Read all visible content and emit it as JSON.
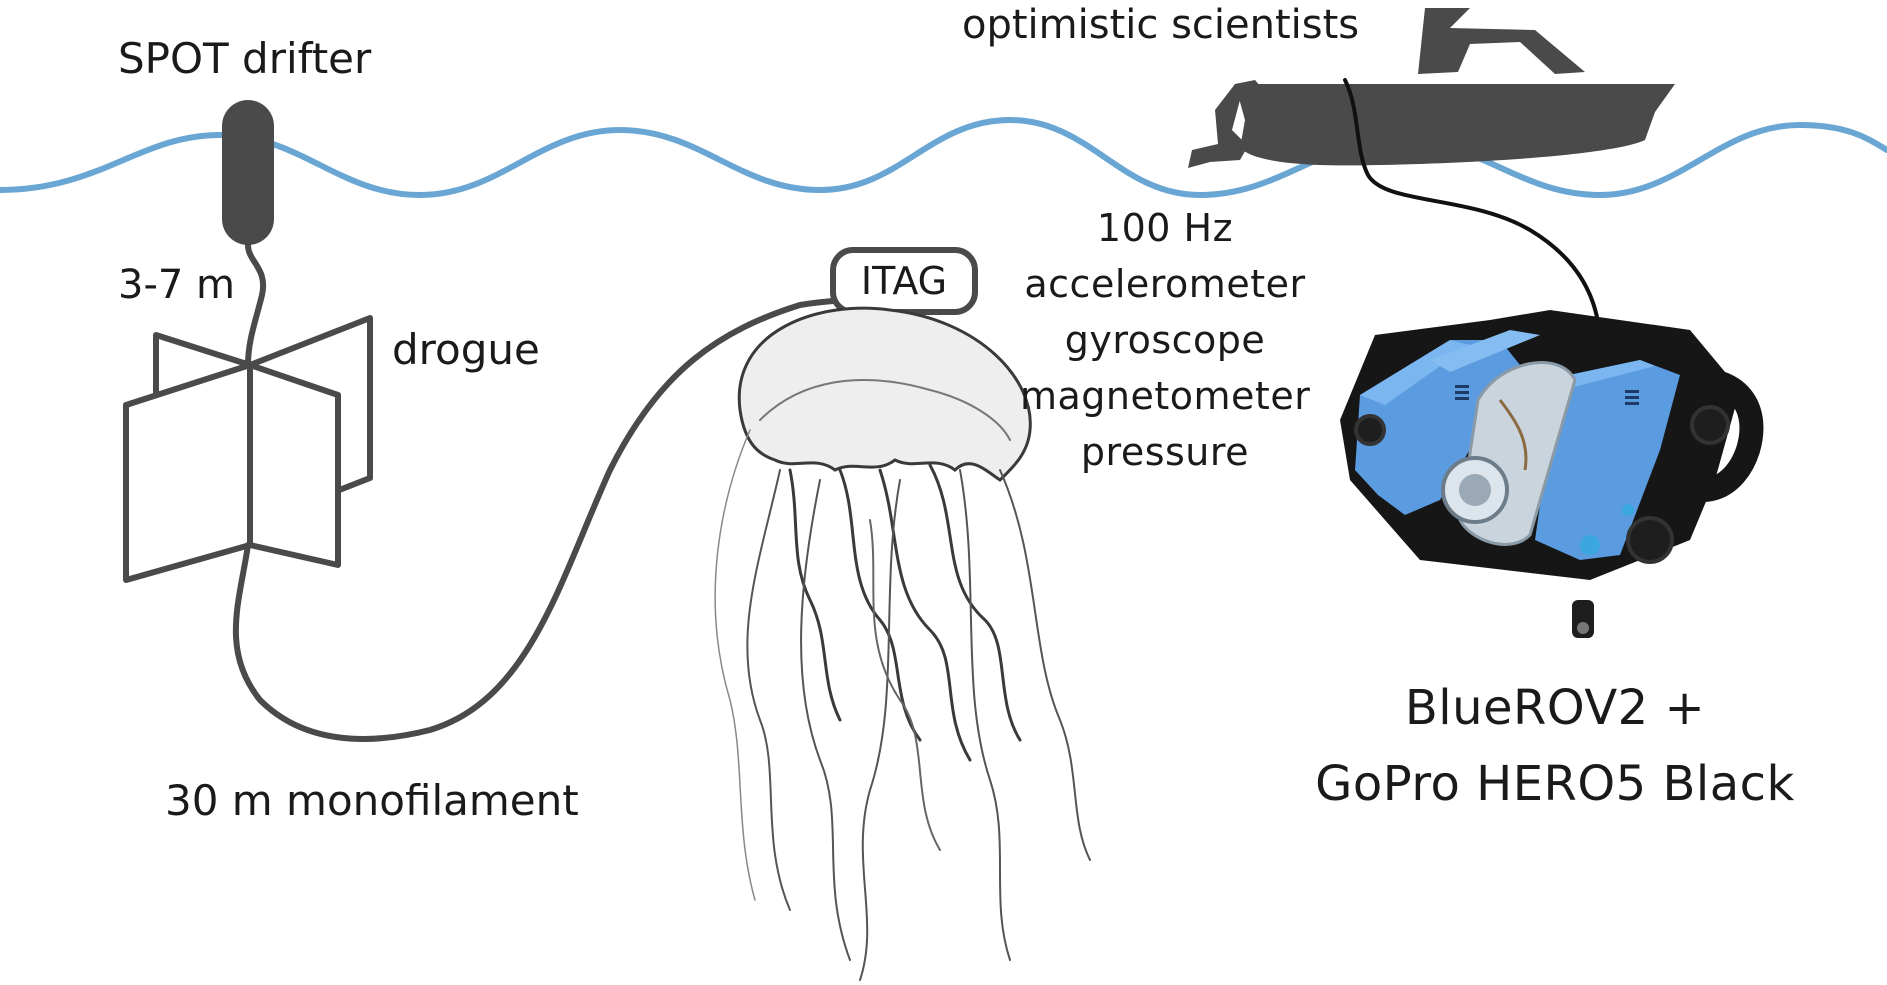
{
  "labels": {
    "spot_drifter": "SPOT drifter",
    "tether_length": "3-7 m",
    "drogue": "drogue",
    "monofilament": "30 m monofilament",
    "itag": "ITAG",
    "scientists": "optimistic scientists",
    "sensors": [
      "100 Hz",
      "accelerometer",
      "gyroscope",
      "magnetometer",
      "pressure"
    ],
    "rov": [
      "BlueROV2 +",
      "GoPro HERO5 Black"
    ]
  },
  "colors": {
    "water": "#6aa6d4",
    "dark_gray": "#4a4a4a",
    "cable": "#111111",
    "rov_blue": "#5b9be0",
    "text": "#1a1a1a"
  },
  "icons": [
    "spot-drifter-icon",
    "drogue-icon",
    "jellyfish-illustration",
    "boat-icon",
    "rov-photo"
  ]
}
